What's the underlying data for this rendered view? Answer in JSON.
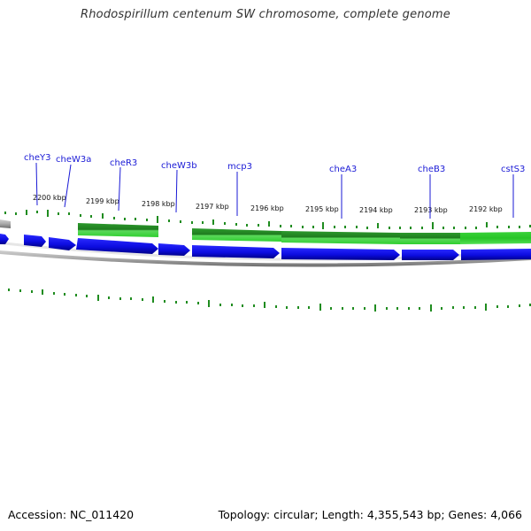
{
  "header": {
    "title": "Rhodospirillum centenum SW chromosome, complete genome"
  },
  "footer": {
    "accession": "Accession: NC_011420",
    "summary": "Topology: circular; Length: 4,355,543 bp; Genes: 4,066"
  },
  "colors": {
    "cds": "#1010e8",
    "cds_shadow": "#00008a",
    "feature_green": "#2fcf2f",
    "feature_dark_green": "#1f7d1f",
    "tick": "#1f8c1f",
    "label": "#1a1ad6",
    "backbone": "#8c8c8c"
  },
  "coordinate_labels": [
    "2200 kbp",
    "2199 kbp",
    "2198 kbp",
    "2197 kbp",
    "2196 kbp",
    "2195 kbp",
    "2194 kbp",
    "2193 kbp",
    "2192 kbp"
  ],
  "gene_labels": [
    "cheY3",
    "cheW3a",
    "cheR3",
    "cheW3b",
    "mcp3",
    "cheA3",
    "cheB3",
    "cstS3"
  ]
}
